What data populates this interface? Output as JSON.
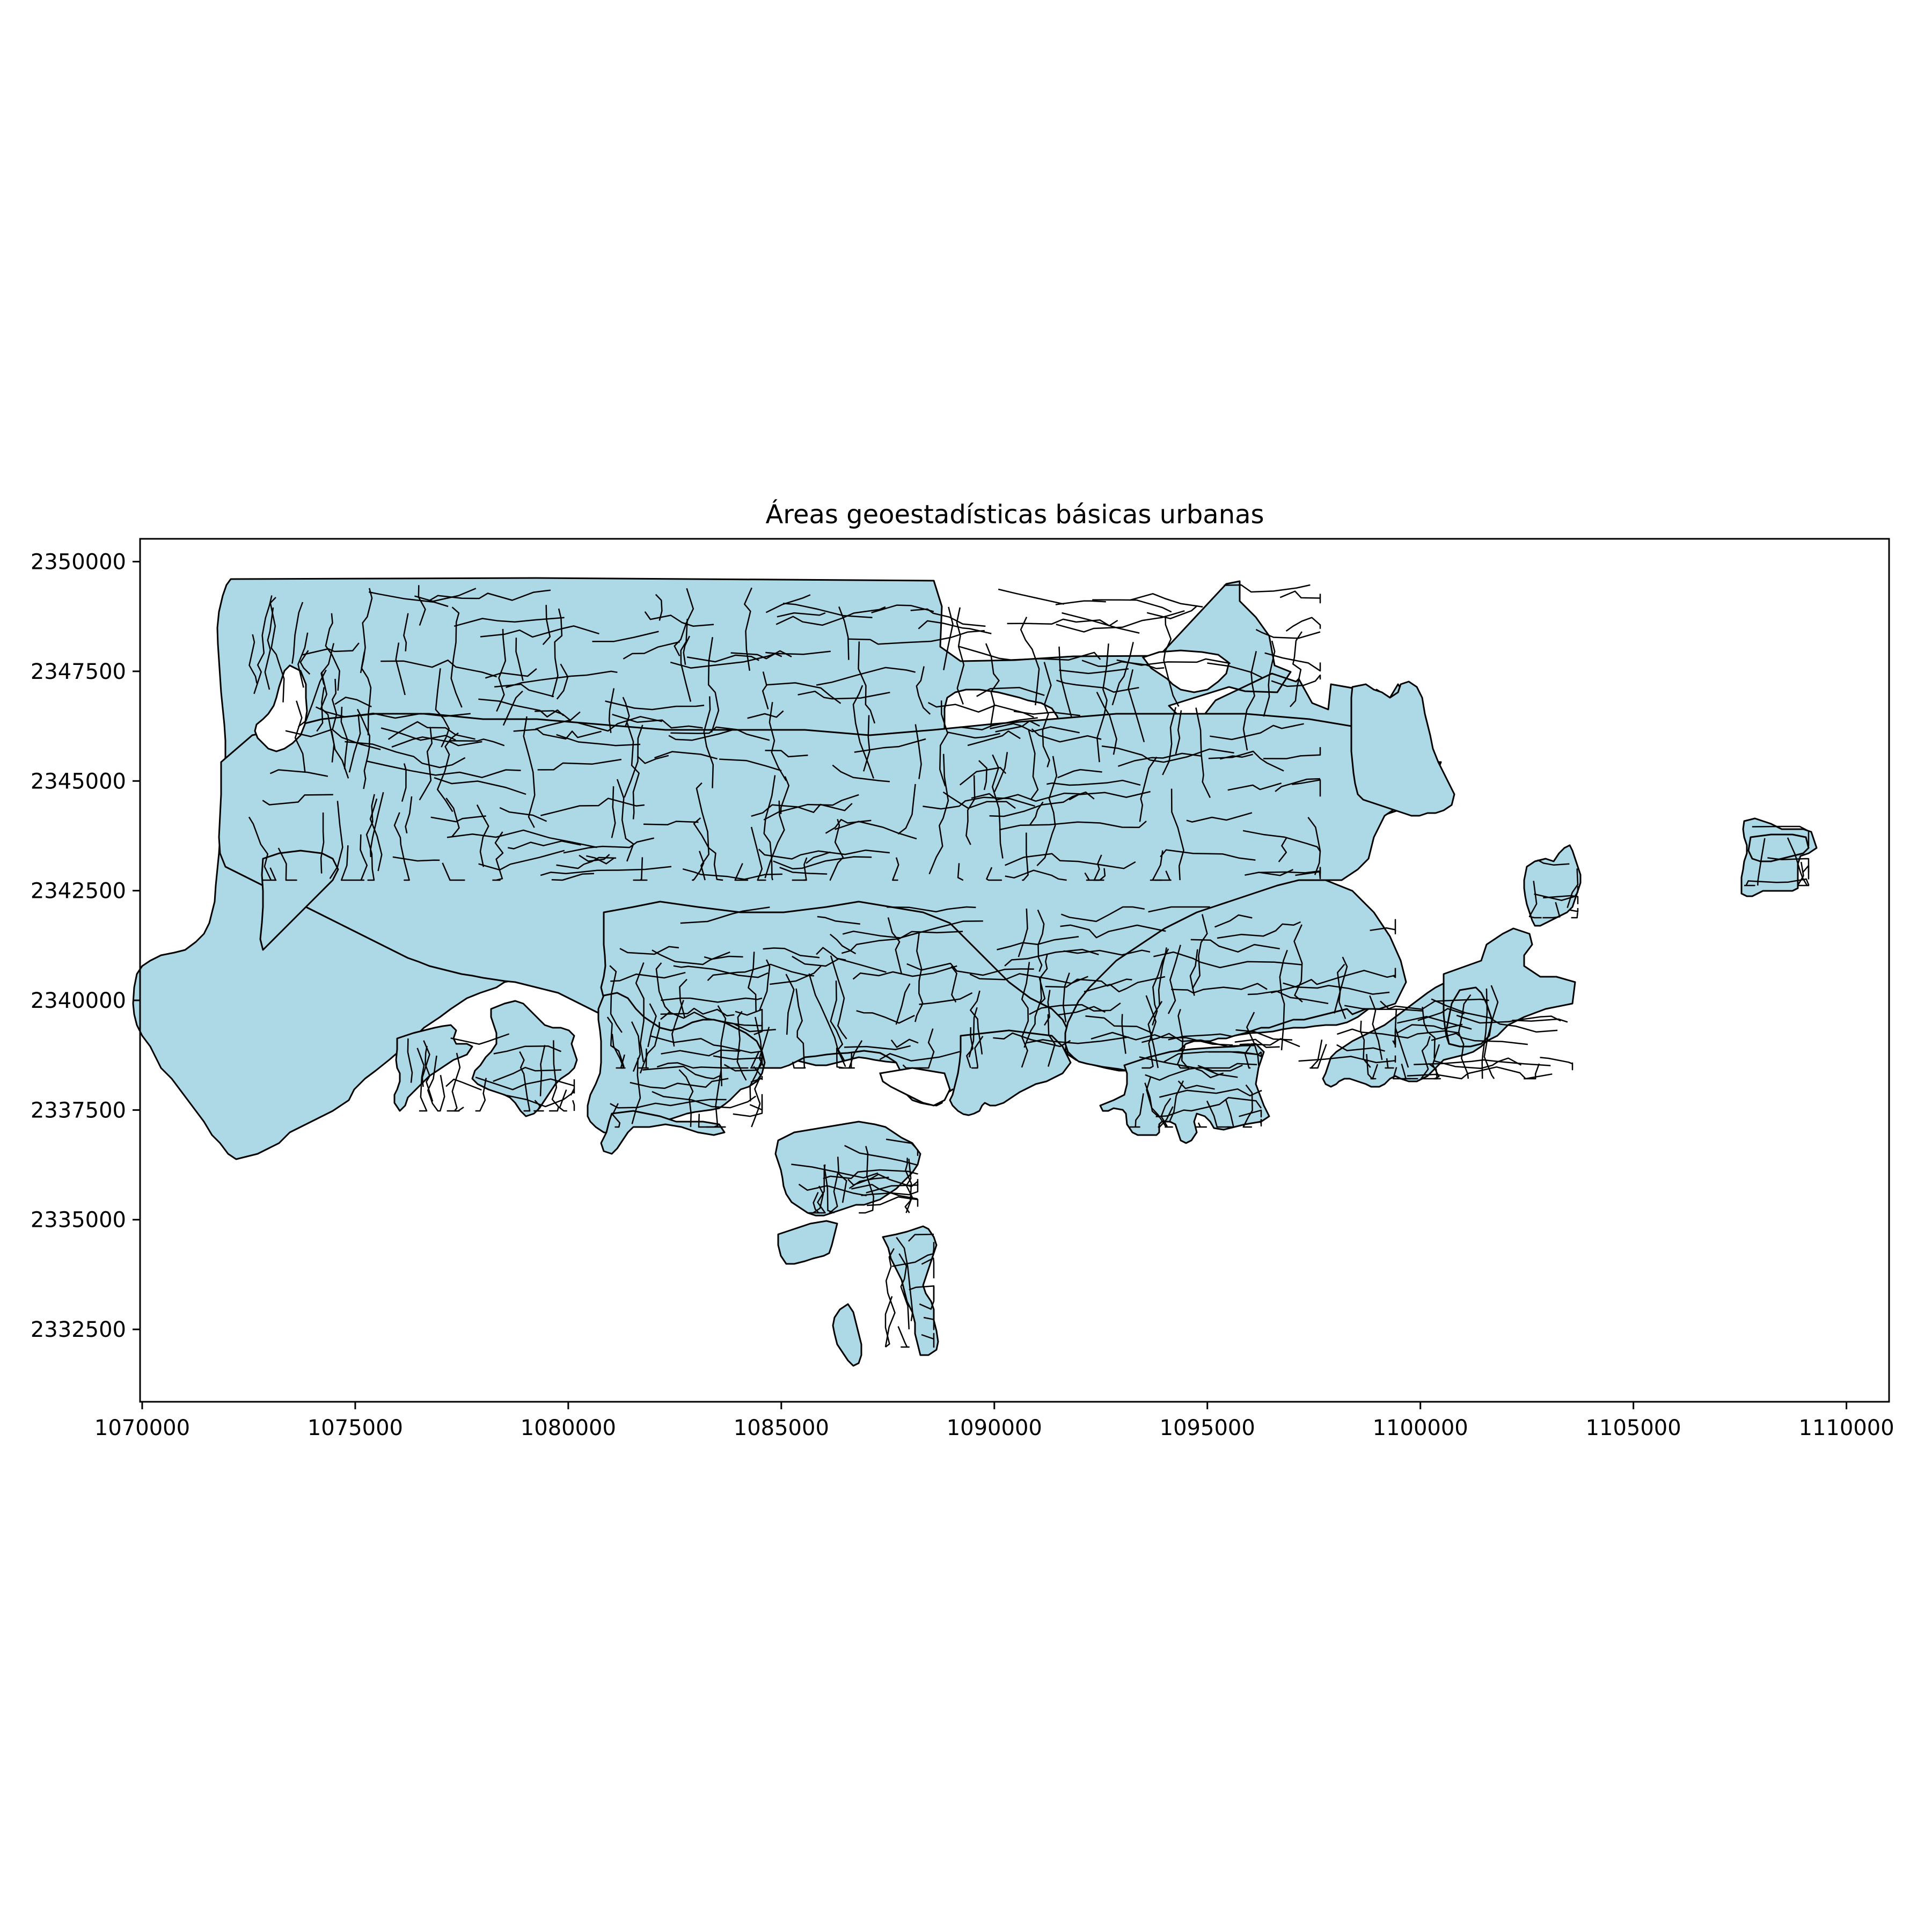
{
  "chart_data": {
    "type": "choropleth-map",
    "title": "Áreas geoestadísticas básicas urbanas",
    "xlabel": "",
    "ylabel": "",
    "xlim": [
      1069950,
      1111000
    ],
    "ylim": [
      2330850,
      2350520
    ],
    "x_ticks": [
      1070000,
      1075000,
      1080000,
      1085000,
      1090000,
      1095000,
      1100000,
      1105000,
      1110000
    ],
    "y_ticks": [
      2332500,
      2335000,
      2337500,
      2340000,
      2342500,
      2345000,
      2347500,
      2350000
    ],
    "grid": false,
    "legend": "none",
    "fill_color": "#add8e6",
    "edge_color": "#000000"
  }
}
